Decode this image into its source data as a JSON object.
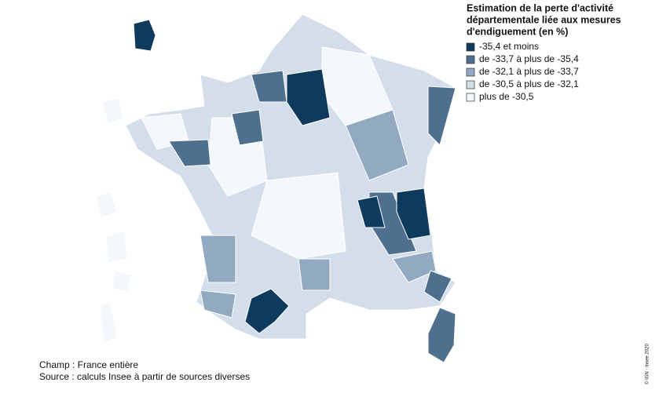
{
  "legend": {
    "title_lines": [
      "Estimation de la perte d'activité",
      "départementale liée aux mesures",
      "d'endiguement (en %)"
    ],
    "items": [
      {
        "label": "-35,4 et moins",
        "color": "#0e3a5e"
      },
      {
        "label": "de -33,7 à plus de -35,4",
        "color": "#4f6f8f"
      },
      {
        "label": "de -32,1 à plus de -33,7",
        "color": "#91a9c1"
      },
      {
        "label": "de -30,5 à plus de -32,1",
        "color": "#d4deea"
      },
      {
        "label": "plus de -30,5",
        "color": "#f4f7fb"
      }
    ]
  },
  "notes": {
    "champ": "Champ : France entière",
    "source": "Source : calculs Insee à partir de sources diverses"
  },
  "copyright": "© IGN · Insee 2020"
}
